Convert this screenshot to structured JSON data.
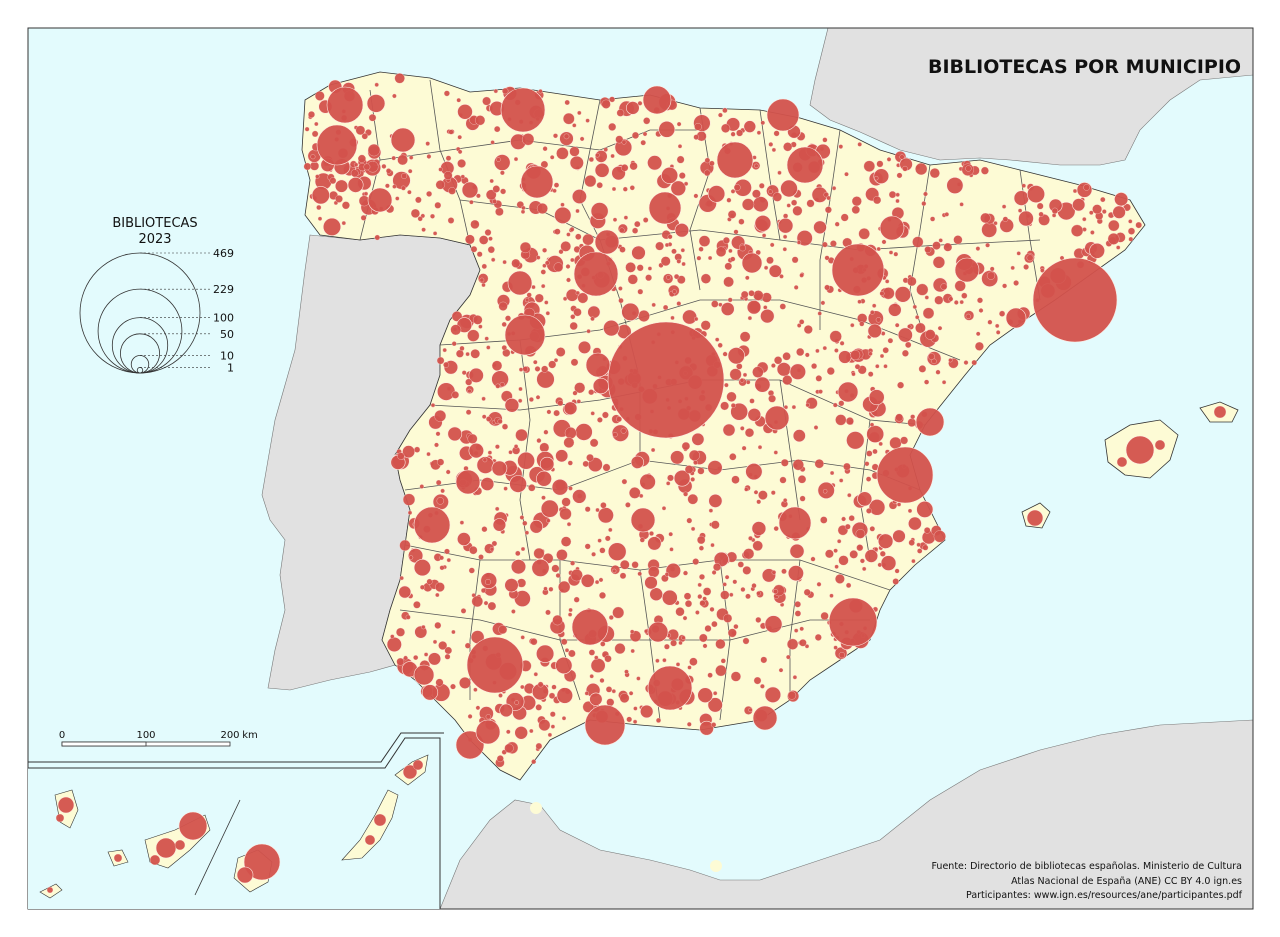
{
  "map": {
    "title": "BIBLIOTECAS POR MUNICIPIO",
    "legend": {
      "title_line1": "BIBLIOTECAS",
      "title_line2": "2023",
      "classes": [
        {
          "value": 469,
          "label": "469"
        },
        {
          "value": 229,
          "label": "229"
        },
        {
          "value": 100,
          "label": "100"
        },
        {
          "value": 50,
          "label": "50"
        },
        {
          "value": 10,
          "label": "10"
        },
        {
          "value": 1,
          "label": "1"
        }
      ]
    },
    "scale_bar": {
      "ticks": [
        "0",
        "100",
        "200"
      ],
      "unit": "km"
    },
    "credits": {
      "source": "Fuente: Directorio de bibliotecas españolas. Ministerio de Cultura",
      "atlas": "Atlas Nacional de España (ANE) CC BY 4.0 ign.es",
      "participants": "Participantes: www.ign.es/resources/ane/participantes.pdf"
    },
    "colors": {
      "sea": "#e3fbfd",
      "spain_land": "#fdfbd5",
      "other_land": "#e1e1e1",
      "symbol_fill": "#d3524c",
      "symbol_stroke": "#fde8e0",
      "boundary": "#555555"
    }
  }
}
